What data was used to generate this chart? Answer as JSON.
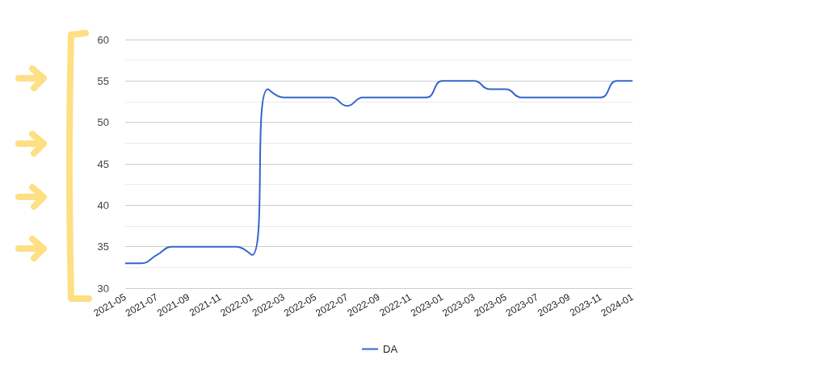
{
  "chart_data": {
    "type": "line",
    "categories": [
      "2021-05",
      null,
      "2021-07",
      null,
      "2021-09",
      null,
      "2021-11",
      null,
      "2022-01",
      null,
      "2022-03",
      null,
      "2022-05",
      null,
      "2022-07",
      null,
      "2022-09",
      null,
      "2022-11",
      null,
      "2023-01",
      null,
      "2023-03",
      null,
      "2023-05",
      null,
      "2023-07",
      null,
      "2023-09",
      null,
      "2023-11",
      null,
      "2024-01"
    ],
    "series": [
      {
        "name": "DA",
        "color": "#3366cc",
        "values": [
          33,
          33,
          34,
          35,
          35,
          35,
          35,
          35,
          34,
          54,
          53,
          53,
          53,
          53,
          52,
          53,
          53,
          53,
          53,
          53,
          55,
          55,
          55,
          54,
          54,
          53,
          53,
          53,
          53,
          53,
          53,
          55,
          55
        ]
      }
    ],
    "ylim": [
      30,
      60
    ],
    "yticks": [
      30,
      35,
      40,
      45,
      50,
      55,
      60
    ],
    "grid": "y",
    "legend": "bottom",
    "marker": "none",
    "line_style": "solid"
  }
}
